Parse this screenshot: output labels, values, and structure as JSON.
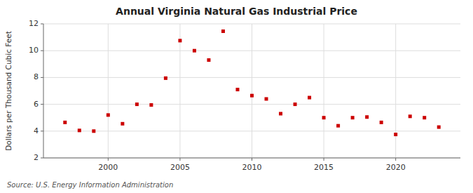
{
  "chart_data": {
    "type": "scatter",
    "title": "Annual Virginia Natural Gas Industrial Price",
    "y_label": "Dollars per Thousand Cubic Feet",
    "source": "Source: U.S. Energy Information Administration",
    "x": [
      1997,
      1998,
      1999,
      2000,
      2001,
      2002,
      2003,
      2004,
      2005,
      2006,
      2007,
      2008,
      2009,
      2010,
      2011,
      2012,
      2013,
      2014,
      2015,
      2016,
      2017,
      2018,
      2019,
      2020,
      2021,
      2022,
      2023
    ],
    "values": [
      4.65,
      4.05,
      4.0,
      5.2,
      4.55,
      6.0,
      5.95,
      7.95,
      10.75,
      10.0,
      9.3,
      11.45,
      7.1,
      6.65,
      6.4,
      5.3,
      6.0,
      6.5,
      5.0,
      4.4,
      5.0,
      5.05,
      4.65,
      3.75,
      5.1,
      5.0,
      4.3
    ],
    "color": "#cc0000",
    "marker": "square",
    "xlim": [
      1995.5,
      2024.5
    ],
    "ylim": [
      2,
      12
    ],
    "xticks": [
      2000,
      2005,
      2010,
      2015,
      2020
    ],
    "yticks": [
      2,
      4,
      6,
      8,
      10,
      12
    ],
    "grid": true
  }
}
